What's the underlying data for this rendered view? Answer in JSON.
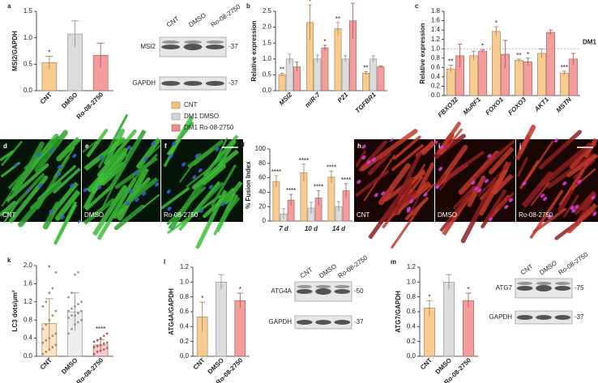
{
  "chart_data": [
    {
      "panel": "a",
      "type": "bar",
      "y_label": "MSI2/GAPDH",
      "categories": [
        "CNT",
        "DMSO",
        "Ro-08-2750"
      ],
      "values": [
        0.53,
        1.07,
        0.67
      ],
      "errors": [
        0.12,
        0.25,
        0.23
      ],
      "colors": [
        "#f6c27e",
        "#d6d6d6",
        "#f18c8c"
      ],
      "significance": [
        "*",
        null,
        null
      ],
      "ylim": [
        0,
        1.5
      ],
      "yticks": [
        {
          "value": 0,
          "label": "0.0"
        },
        {
          "value": 0.5,
          "label": "0.5"
        },
        {
          "value": 1,
          "label": "1.0"
        },
        {
          "value": 1.5,
          "label": "1.5"
        }
      ]
    },
    {
      "panel": "b",
      "type": "grouped_bar",
      "y_label": "Relative expression",
      "categories": [
        "MSI2",
        "miR-7",
        "P21",
        "TGFBR1"
      ],
      "series": [
        {
          "name": "CNT",
          "color": "#f6c27e",
          "values": [
            0.5,
            2.15,
            1.95,
            0.55
          ],
          "errors": [
            0.05,
            0.55,
            0.2,
            0.05
          ],
          "significance": [
            "**",
            "*",
            "**",
            "**"
          ]
        },
        {
          "name": "DM1 DMSO",
          "color": "#d6d6d6",
          "values": [
            1,
            1,
            1,
            1
          ],
          "errors": [
            0.15,
            0.12,
            0.1,
            0.1
          ],
          "significance": [
            null,
            null,
            null,
            null
          ]
        },
        {
          "name": "DM1 Ro-08-2750",
          "color": "#f18c8c",
          "values": [
            0.75,
            1.35,
            2.2,
            0.75
          ],
          "errors": [
            0.15,
            0.08,
            0.55,
            0.03
          ],
          "significance": [
            null,
            "*",
            "*",
            null
          ]
        }
      ],
      "ylim": [
        0,
        2.5
      ],
      "yticks": [
        {
          "value": 0,
          "label": "0.0"
        },
        {
          "value": 0.5,
          "label": "0.5"
        },
        {
          "value": 1,
          "label": "1.0"
        },
        {
          "value": 1.5,
          "label": "1.5"
        },
        {
          "value": 2,
          "label": "2.0"
        },
        {
          "value": 2.5,
          "label": "2.5"
        }
      ]
    },
    {
      "panel": "c",
      "type": "grouped_bar",
      "y_label": "Relative expression",
      "categories": [
        "FBXO32",
        "MuRF1",
        "FOXO1",
        "FOXO3",
        "AKT1",
        "MSTN"
      ],
      "series": [
        {
          "color": "#f6c27e",
          "values": [
            0.57,
            0.85,
            1.37,
            0.75,
            0.9,
            0.48
          ],
          "errors": [
            0.08,
            0.1,
            0.1,
            0.03,
            0.1,
            0.04
          ],
          "significance": [
            "**",
            null,
            "*",
            "**",
            null,
            "***"
          ]
        },
        {
          "color": "#f18c8c",
          "values": [
            0.85,
            0.95,
            0.88,
            0.72,
            1.35,
            0.78
          ],
          "errors": [
            0.25,
            0.03,
            0.3,
            0.08,
            0.05,
            0.12
          ],
          "significance": [
            null,
            "*",
            null,
            "*",
            null,
            null
          ]
        }
      ],
      "reference_line": {
        "value": 1,
        "label": "DM1"
      },
      "ylim": [
        0,
        1.8
      ],
      "yticks": [
        {
          "value": 0,
          "label": "0.0"
        },
        {
          "value": 0.2,
          "label": "0.2"
        },
        {
          "value": 0.4,
          "label": "0.4"
        },
        {
          "value": 0.6,
          "label": "0.6"
        },
        {
          "value": 0.8,
          "label": "0.8"
        },
        {
          "value": 1,
          "label": "1.0"
        },
        {
          "value": 1.2,
          "label": "1.2"
        },
        {
          "value": 1.4,
          "label": "1.4"
        },
        {
          "value": 1.6,
          "label": "1.6"
        },
        {
          "value": 1.8,
          "label": "1.8"
        }
      ]
    },
    {
      "panel": "g",
      "type": "grouped_bar",
      "y_label": "% Fusion Index",
      "categories": [
        "7 d",
        "10 d",
        "14 d"
      ],
      "series": [
        {
          "color": "#f6c27e",
          "values": [
            55,
            67,
            61
          ],
          "errors": [
            8,
            12,
            8
          ],
          "significance": [
            "****",
            "****",
            "****"
          ]
        },
        {
          "color": "#d6d6d6",
          "values": [
            10,
            18,
            20
          ],
          "errors": [
            7,
            8,
            7
          ],
          "significance": [
            null,
            null,
            null
          ]
        },
        {
          "color": "#f18c8c",
          "values": [
            29,
            32,
            42
          ],
          "errors": [
            8,
            10,
            10
          ],
          "significance": [
            "****",
            "****",
            "****"
          ]
        }
      ],
      "ylim": [
        0,
        100
      ],
      "yticks": [
        0,
        20,
        40,
        60,
        80,
        100
      ]
    },
    {
      "panel": "k",
      "type": "bar_scatter",
      "y_label": "LC3 dots/μm²",
      "categories": [
        "CNT",
        "DMSO",
        "Ro-08-2750"
      ],
      "values": [
        0.72,
        0.98,
        0.25
      ],
      "errors": [
        0.55,
        0.42,
        0.12
      ],
      "colors": [
        "#f6c27e",
        "#d6d6d6",
        "#f18c8c"
      ],
      "significance": [
        "*",
        null,
        "****"
      ],
      "points": [
        [
          0.05,
          0.1,
          0.15,
          0.2,
          0.25,
          0.3,
          0.35,
          0.4,
          0.45,
          0.5,
          0.6,
          0.7,
          0.8,
          0.9,
          1.0,
          1.1,
          1.2,
          1.4,
          1.5,
          1.85
        ],
        [
          0.5,
          0.6,
          0.7,
          0.75,
          0.8,
          0.85,
          0.9,
          0.9,
          0.95,
          1.0,
          1.0,
          1.05,
          1.1,
          1.15,
          1.2,
          1.3,
          1.4,
          1.8,
          1.85
        ],
        [
          0.05,
          0.1,
          0.12,
          0.15,
          0.18,
          0.2,
          0.22,
          0.25,
          0.28,
          0.3,
          0.32,
          0.35,
          0.4,
          0.45,
          0.5
        ]
      ],
      "ylim": [
        0,
        2
      ],
      "yticks": [
        {
          "value": 0,
          "label": "0.0"
        },
        {
          "value": 0.4,
          "label": "0.4"
        },
        {
          "value": 0.8,
          "label": "0.8"
        },
        {
          "value": 1.2,
          "label": "1.2"
        },
        {
          "value": 1.6,
          "label": "1.6"
        },
        {
          "value": 2,
          "label": "2.0"
        }
      ]
    },
    {
      "panel": "l",
      "type": "bar",
      "y_label": "ATG4A/GAPDH",
      "categories": [
        "CNT",
        "DMSO",
        "Ro-08-2750"
      ],
      "values": [
        0.53,
        1.0,
        0.75
      ],
      "errors": [
        0.2,
        0.1,
        0.1
      ],
      "colors": [
        "#f6c27e",
        "#d6d6d6",
        "#f18c8c"
      ],
      "significance": [
        "*",
        null,
        "*"
      ],
      "ylim": [
        0,
        1.2
      ],
      "yticks": [
        {
          "value": 0,
          "label": "0.0"
        },
        {
          "value": 0.2,
          "label": "0.2"
        },
        {
          "value": 0.4,
          "label": "0.4"
        },
        {
          "value": 0.6,
          "label": "0.6"
        },
        {
          "value": 0.8,
          "label": "0.8"
        },
        {
          "value": 1,
          "label": "1.0"
        },
        {
          "value": 1.2,
          "label": "1.2"
        }
      ]
    },
    {
      "panel": "m",
      "type": "bar",
      "y_label": "ATG7/GAPDH",
      "categories": [
        "CNT",
        "DMSO",
        "Ro-08-2750"
      ],
      "values": [
        0.65,
        1.0,
        0.75
      ],
      "errors": [
        0.1,
        0.1,
        0.1
      ],
      "colors": [
        "#f6c27e",
        "#d6d6d6",
        "#f18c8c"
      ],
      "significance": [
        "*",
        null,
        "*"
      ],
      "ylim": [
        0,
        1.2
      ],
      "yticks": [
        {
          "value": 0,
          "label": "0.0"
        },
        {
          "value": 0.2,
          "label": "0.2"
        },
        {
          "value": 0.4,
          "label": "0.4"
        },
        {
          "value": 0.6,
          "label": "0.6"
        },
        {
          "value": 0.8,
          "label": "0.8"
        },
        {
          "value": 1,
          "label": "1.0"
        },
        {
          "value": 1.2,
          "label": "1.2"
        }
      ]
    }
  ],
  "blots": [
    {
      "columns": [
        "CNT",
        "DMSO",
        "Ro-08-2750"
      ],
      "rows": [
        {
          "label": "MSI2",
          "marker": "-37"
        },
        {
          "label": "GAPDH",
          "marker": "-37"
        }
      ]
    },
    {
      "columns": [
        "CNT",
        "DMSO",
        "Ro-08-2750"
      ],
      "rows": [
        {
          "label": "ATG4A",
          "marker": "-50"
        },
        {
          "label": "GAPDH",
          "marker": "-37"
        }
      ]
    },
    {
      "columns": [
        "CNT",
        "DMSO",
        "Ro-08-2750"
      ],
      "rows": [
        {
          "label": "ATG7",
          "marker": "-75"
        },
        {
          "label": "GAPDH",
          "marker": "-37"
        }
      ]
    }
  ],
  "images": [
    {
      "panel": "d",
      "label": "CNT"
    },
    {
      "panel": "e",
      "label": "DMSO"
    },
    {
      "panel": "f",
      "label": "Ro-08-2750"
    },
    {
      "panel": "h",
      "label": "CNT"
    },
    {
      "panel": "i",
      "label": "DMSO"
    },
    {
      "panel": "j",
      "label": "Ro-08-2750"
    }
  ]
}
